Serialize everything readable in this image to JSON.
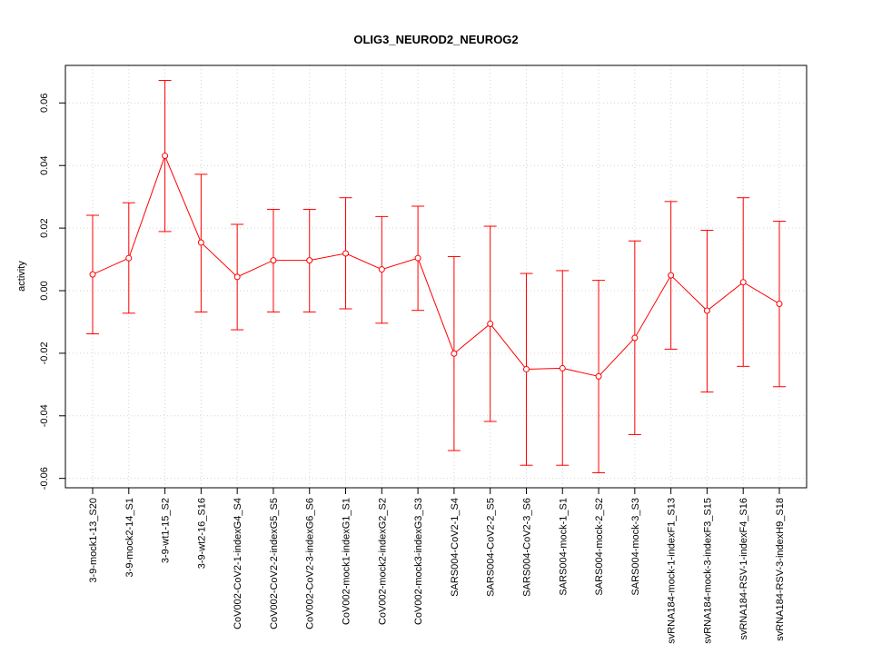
{
  "chart_data": {
    "type": "line",
    "title": "OLIG3_NEUROD2_NEUROG2",
    "xlabel": "",
    "ylabel": "activity",
    "ylim": [
      -0.063,
      0.072
    ],
    "yticks": [
      -0.06,
      -0.04,
      -0.02,
      0.0,
      0.02,
      0.04,
      0.06
    ],
    "ytick_labels": [
      "-0.06",
      "-0.04",
      "-0.02",
      "0.00",
      "0.02",
      "0.04",
      "0.06"
    ],
    "grid": true,
    "legend": "none",
    "color": "#ff0000",
    "categories": [
      "3-9-mock1-13_S20",
      "3-9-mock2-14_S1",
      "3-9-wt1-15_S2",
      "3-9-wt2-16_S16",
      "CoV002-CoV2-1-indexG4_S4",
      "CoV002-CoV2-2-indexG5_S5",
      "CoV002-CoV2-3-indexG6_S6",
      "CoV002-mock1-indexG1_S1",
      "CoV002-mock2-indexG2_S2",
      "CoV002-mock3-indexG3_S3",
      "SARS004-CoV2-1_S4",
      "SARS004-CoV2-2_S5",
      "SARS004-CoV2-3_S6",
      "SARS004-mock-1_S1",
      "SARS004-mock-2_S2",
      "SARS004-mock-3_S3",
      "svRNA184-mock-1-indexF1_S13",
      "svRNA184-mock-3-indexF3_S15",
      "svRNA184-RSV-1-indexF4_S16",
      "svRNA184-RSV-3-indexH9_S18"
    ],
    "series": [
      {
        "values": [
          0.0052,
          0.0104,
          0.0431,
          0.0154,
          0.0044,
          0.0097,
          0.0097,
          0.0119,
          0.0068,
          0.0104,
          -0.0201,
          -0.0106,
          -0.0251,
          -0.0248,
          -0.0274,
          -0.0151,
          0.0049,
          -0.0064,
          0.0027,
          -0.0042
        ],
        "lower": [
          -0.0138,
          -0.0072,
          0.0189,
          -0.0068,
          -0.0125,
          -0.0068,
          -0.0068,
          -0.0058,
          -0.0104,
          -0.0063,
          -0.0511,
          -0.0418,
          -0.0558,
          -0.0558,
          -0.0582,
          -0.046,
          -0.0187,
          -0.0324,
          -0.0242,
          -0.0307
        ],
        "upper": [
          0.0241,
          0.0281,
          0.0672,
          0.0372,
          0.0212,
          0.026,
          0.026,
          0.0297,
          0.0237,
          0.027,
          0.0109,
          0.0206,
          0.0055,
          0.0064,
          0.0033,
          0.0159,
          0.0285,
          0.0193,
          0.0297,
          0.0222
        ]
      }
    ]
  }
}
